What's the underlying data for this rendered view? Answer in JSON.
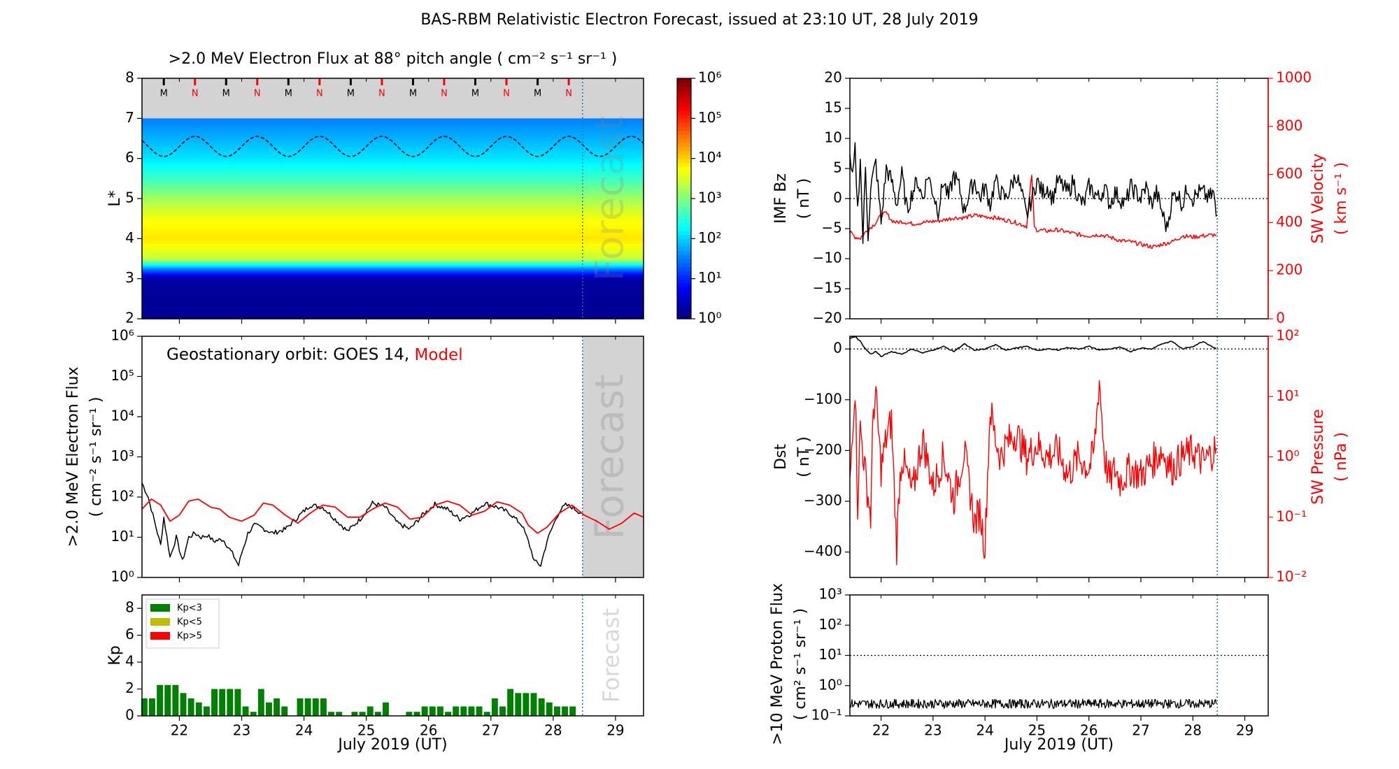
{
  "figure_title": "BAS-RBM Relativistic Electron Forecast, issued at 23:10 UT, 28 July 2019",
  "colors": {
    "model": "#ff0000",
    "data": "#000000",
    "kp_lt3": "#008000",
    "kp_lt5": "#bfbf00",
    "kp_gt5": "#ff0000",
    "forecast_shade": "#d3d3d3",
    "forecast_line": "#1f77b4"
  },
  "chart_data": [
    {
      "id": "flux_map",
      "type": "heatmap",
      "title": ">2.0 MeV Electron Flux at 88° pitch angle ( cm⁻² s⁻¹ sr⁻¹ )",
      "ylabel": "L*",
      "x_range": [
        21.4,
        29.45
      ],
      "ylim": [
        2,
        8
      ],
      "yticks": [
        "2",
        "3",
        "4",
        "5",
        "6",
        "7",
        "8"
      ],
      "colorbar_ticks": [
        "10⁰",
        "10¹",
        "10²",
        "10³",
        "10⁴",
        "10⁵",
        "10⁶"
      ],
      "colorbar_range": [
        0,
        6
      ],
      "forecast_start": 28.47,
      "forecast_label": "Forecast",
      "mn_markers": [
        {
          "label": "M",
          "x": 21.75
        },
        {
          "label": "N",
          "x": 22.25
        },
        {
          "label": "M",
          "x": 22.75
        },
        {
          "label": "N",
          "x": 23.25
        },
        {
          "label": "M",
          "x": 23.75
        },
        {
          "label": "N",
          "x": 24.25
        },
        {
          "label": "M",
          "x": 24.75
        },
        {
          "label": "N",
          "x": 25.25
        },
        {
          "label": "M",
          "x": 25.75
        },
        {
          "label": "N",
          "x": 26.25
        },
        {
          "label": "M",
          "x": 26.75
        },
        {
          "label": "N",
          "x": 27.25
        },
        {
          "label": "M",
          "x": 27.75
        },
        {
          "label": "N",
          "x": 28.25
        }
      ],
      "log_flux_profile": [
        {
          "L": 2.0,
          "log_flux": 0.1
        },
        {
          "L": 3.0,
          "log_flux": 0.2
        },
        {
          "L": 3.25,
          "log_flux": 1.5
        },
        {
          "L": 3.5,
          "log_flux": 3.4
        },
        {
          "L": 4.0,
          "log_flux": 3.9
        },
        {
          "L": 4.5,
          "log_flux": 3.7
        },
        {
          "L": 5.0,
          "log_flux": 3.2
        },
        {
          "L": 5.5,
          "log_flux": 2.6
        },
        {
          "L": 6.0,
          "log_flux": 2.1
        },
        {
          "L": 6.5,
          "log_flux": 1.8
        },
        {
          "L": 7.0,
          "log_flux": 1.5
        }
      ],
      "geo_orbit_L": {
        "mean": 6.3,
        "amplitude": 0.25,
        "period_days": 1
      }
    },
    {
      "id": "geo_flux",
      "type": "line",
      "ylabel": ">2.0 MeV Electron Flux ( cm⁻² s⁻¹ sr⁻¹ )",
      "annotation_prefix": "Geostationary orbit:   GOES 14,",
      "annotation_model": "Model",
      "yscale": "log",
      "ylim": [
        0,
        6
      ],
      "yticks": [
        "10⁰",
        "10¹",
        "10²",
        "10³",
        "10⁴",
        "10⁵",
        "10⁶"
      ],
      "x_range": [
        21.4,
        29.45
      ],
      "forecast_start": 28.47,
      "forecast_label": "Forecast",
      "series": [
        {
          "name": "GOES 14",
          "color": "#000000",
          "x": [
            21.4,
            21.5,
            21.6,
            21.7,
            21.75,
            21.85,
            21.95,
            22.05,
            22.15,
            22.25,
            22.35,
            22.45,
            22.55,
            22.7,
            22.85,
            22.95,
            23.0,
            23.1,
            23.2,
            23.3,
            23.5,
            23.7,
            23.9,
            24.1,
            24.3,
            24.5,
            24.7,
            24.9,
            25.1,
            25.3,
            25.5,
            25.7,
            25.9,
            26.1,
            26.3,
            26.5,
            26.7,
            26.9,
            27.1,
            27.3,
            27.5,
            27.6,
            27.7,
            27.8,
            27.9,
            28.0,
            28.1,
            28.2,
            28.3,
            28.45
          ],
          "y": [
            2.35,
            2.0,
            1.4,
            0.8,
            1.5,
            0.5,
            1.0,
            0.4,
            1.0,
            1.1,
            1.0,
            1.05,
            0.9,
            0.95,
            0.6,
            0.3,
            0.6,
            1.1,
            1.3,
            1.25,
            1.1,
            1.2,
            1.5,
            1.8,
            1.75,
            1.45,
            1.15,
            1.45,
            1.85,
            1.75,
            1.35,
            1.2,
            1.55,
            1.82,
            1.7,
            1.45,
            1.6,
            1.85,
            1.75,
            1.6,
            1.3,
            0.9,
            0.4,
            0.3,
            0.9,
            1.3,
            1.65,
            1.8,
            1.75,
            1.6
          ]
        },
        {
          "name": "Model",
          "color": "#ff0000",
          "x": [
            21.4,
            21.55,
            21.7,
            21.85,
            22.0,
            22.15,
            22.3,
            22.5,
            22.65,
            22.8,
            23.0,
            23.2,
            23.35,
            23.5,
            23.7,
            23.9,
            24.1,
            24.3,
            24.5,
            24.7,
            24.9,
            25.1,
            25.3,
            25.5,
            25.7,
            25.9,
            26.1,
            26.3,
            26.5,
            26.7,
            26.9,
            27.1,
            27.3,
            27.5,
            27.6,
            27.75,
            27.9,
            28.1,
            28.3,
            28.5,
            28.7,
            28.9,
            29.1,
            29.3,
            29.45
          ],
          "y": [
            1.7,
            1.95,
            1.8,
            1.4,
            1.55,
            1.9,
            1.95,
            1.75,
            1.7,
            1.5,
            1.4,
            1.55,
            1.85,
            1.8,
            1.55,
            1.35,
            1.6,
            1.8,
            1.75,
            1.5,
            1.5,
            1.7,
            1.85,
            1.75,
            1.45,
            1.5,
            1.8,
            1.9,
            1.8,
            1.55,
            1.65,
            1.88,
            1.8,
            1.6,
            1.3,
            1.1,
            1.25,
            1.6,
            1.8,
            1.55,
            1.4,
            1.2,
            1.35,
            1.6,
            1.5
          ]
        }
      ]
    },
    {
      "id": "kp",
      "type": "bar",
      "ylabel": "Kp",
      "xlabel": "July 2019 (UT)",
      "ylim": [
        0,
        9
      ],
      "yticks": [
        "0",
        "2",
        "4",
        "6",
        "8"
      ],
      "x_range": [
        21.4,
        29.45
      ],
      "xticks": [
        "22",
        "23",
        "24",
        "25",
        "26",
        "27",
        "28",
        "29"
      ],
      "bar_width_days": 0.1,
      "forecast_start": 28.47,
      "forecast_label": "Forecast",
      "legend": [
        "Kp<3",
        "Kp<5",
        "Kp>5"
      ],
      "x": [
        21.4375,
        21.5625,
        21.6875,
        21.8125,
        21.9375,
        22.0625,
        22.1875,
        22.3125,
        22.4375,
        22.5625,
        22.6875,
        22.8125,
        22.9375,
        23.0625,
        23.1875,
        23.3125,
        23.4375,
        23.5625,
        23.6875,
        23.8125,
        23.9375,
        24.0625,
        24.1875,
        24.3125,
        24.4375,
        24.5625,
        24.6875,
        24.8125,
        24.9375,
        25.0625,
        25.1875,
        25.3125,
        25.4375,
        25.5625,
        25.6875,
        25.8125,
        25.9375,
        26.0625,
        26.1875,
        26.3125,
        26.4375,
        26.5625,
        26.6875,
        26.8125,
        26.9375,
        27.0625,
        27.1875,
        27.3125,
        27.4375,
        27.5625,
        27.6875,
        27.8125,
        27.9375,
        28.0625,
        28.1875,
        28.3125
      ],
      "values": [
        1.3,
        1.3,
        2.3,
        2.3,
        2.3,
        1.7,
        1.3,
        1.0,
        0.7,
        2.0,
        2.0,
        2.0,
        2.0,
        0.7,
        0.3,
        2.0,
        1.0,
        1.3,
        0.7,
        0.0,
        1.3,
        1.3,
        1.3,
        1.3,
        0.3,
        0.3,
        0.0,
        0.3,
        0.3,
        0.7,
        0.3,
        1.0,
        0.0,
        0.0,
        0.3,
        0.3,
        0.7,
        0.7,
        0.7,
        0.3,
        0.7,
        0.7,
        0.7,
        0.7,
        0.3,
        1.3,
        0.7,
        2.0,
        1.7,
        1.7,
        1.7,
        1.3,
        1.0,
        0.7,
        0.7,
        0.7
      ]
    },
    {
      "id": "imf_sw",
      "type": "line",
      "ylabel_left": "IMF Bz ( nT )",
      "ylabel_right": "SW Velocity ( km s⁻¹ )",
      "ylim_left": [
        -20,
        20
      ],
      "ylim_right": [
        0,
        1000
      ],
      "yticks_left": [
        "−20",
        "−15",
        "−10",
        "−5",
        "0",
        "5",
        "10",
        "15",
        "20"
      ],
      "yticks_right": [
        "0",
        "200",
        "400",
        "600",
        "800",
        "1000"
      ],
      "x_range": [
        21.4,
        29.45
      ],
      "forecast_start": 28.47,
      "reference_line_left": 0,
      "series": [
        {
          "name": "IMF Bz",
          "axis": "left",
          "color": "#000000",
          "x": [
            21.4,
            21.45,
            21.5,
            21.55,
            21.6,
            21.65,
            21.7,
            21.75,
            21.8,
            21.9,
            22.0,
            22.1,
            22.2,
            22.3,
            22.4,
            22.5,
            22.6,
            22.7,
            22.8,
            22.9,
            23.0,
            23.1,
            23.2,
            23.3,
            23.4,
            23.5,
            23.6,
            23.7,
            23.8,
            23.9,
            24.0,
            24.1,
            24.2,
            24.3,
            24.4,
            24.5,
            24.6,
            24.7,
            24.8,
            24.9,
            25.0,
            25.1,
            25.2,
            25.3,
            25.4,
            25.5,
            25.6,
            25.7,
            25.8,
            25.9,
            26.0,
            26.1,
            26.2,
            26.3,
            26.4,
            26.5,
            26.6,
            26.7,
            26.8,
            26.9,
            27.0,
            27.1,
            27.2,
            27.3,
            27.4,
            27.5,
            27.6,
            27.7,
            27.8,
            27.9,
            28.0,
            28.1,
            28.2,
            28.3,
            28.4,
            28.45
          ],
          "y": [
            6,
            3,
            8,
            -2,
            7,
            -7,
            5,
            -6,
            2,
            6,
            -4,
            5,
            3,
            -1,
            4,
            -2,
            1,
            3,
            0,
            4,
            1,
            -2,
            3,
            0,
            4,
            2,
            -2,
            1,
            3,
            0,
            2,
            -1,
            3,
            1,
            0,
            2,
            4,
            1,
            -3,
            0,
            3,
            1,
            2,
            0,
            3,
            2,
            1,
            3,
            0,
            -1,
            2,
            1,
            0,
            2,
            -1,
            1,
            0,
            -1,
            2,
            1,
            0,
            2,
            -1,
            1,
            -2,
            -5,
            0,
            1,
            -1,
            2,
            0,
            1,
            1,
            0,
            1,
            -3
          ]
        },
        {
          "name": "SW Velocity",
          "axis": "right",
          "color": "#ff0000",
          "x": [
            21.4,
            21.5,
            21.6,
            21.7,
            21.8,
            21.9,
            22.0,
            22.1,
            22.2,
            22.3,
            22.4,
            22.5,
            22.6,
            22.8,
            23.0,
            23.2,
            23.4,
            23.6,
            23.8,
            24.0,
            24.2,
            24.4,
            24.6,
            24.8,
            24.9,
            24.95,
            25.0,
            25.2,
            25.4,
            25.6,
            25.8,
            26.0,
            26.2,
            26.4,
            26.6,
            26.8,
            27.0,
            27.2,
            27.3,
            27.4,
            27.6,
            27.8,
            28.0,
            28.2,
            28.45
          ],
          "y": [
            360,
            340,
            335,
            360,
            380,
            400,
            430,
            440,
            410,
            400,
            405,
            400,
            395,
            400,
            405,
            410,
            420,
            420,
            430,
            425,
            420,
            410,
            400,
            385,
            600,
            380,
            370,
            365,
            370,
            360,
            350,
            345,
            350,
            340,
            325,
            320,
            310,
            300,
            300,
            310,
            320,
            345,
            340,
            345,
            350
          ]
        }
      ]
    },
    {
      "id": "dst_pressure",
      "type": "line",
      "ylabel_left": "Dst ( nT )",
      "ylabel_right": "SW Pressure ( nPa )",
      "ylim_left": [
        -450,
        25
      ],
      "ylim_right_log": [
        -2,
        2
      ],
      "yticks_left": [
        "−400",
        "−300",
        "−200",
        "−100",
        "0"
      ],
      "yticks_right": [
        "10⁻²",
        "10⁻¹",
        "10⁰",
        "10¹",
        "10²"
      ],
      "x_range": [
        21.4,
        29.45
      ],
      "forecast_start": 28.47,
      "reference_line_left": 0,
      "series": [
        {
          "name": "Dst",
          "axis": "left",
          "color": "#000000",
          "x": [
            21.4,
            21.5,
            21.6,
            21.7,
            21.8,
            21.9,
            22.0,
            22.2,
            22.4,
            22.6,
            22.8,
            23.0,
            23.2,
            23.4,
            23.6,
            23.8,
            24.0,
            24.2,
            24.4,
            24.6,
            24.8,
            25.0,
            25.2,
            25.4,
            25.6,
            25.8,
            26.0,
            26.2,
            26.4,
            26.6,
            26.8,
            27.0,
            27.2,
            27.4,
            27.6,
            27.8,
            28.0,
            28.2,
            28.45
          ],
          "y": [
            20,
            25,
            15,
            0,
            -10,
            -5,
            -15,
            -5,
            -10,
            0,
            -8,
            -2,
            5,
            -5,
            10,
            -3,
            0,
            8,
            -2,
            2,
            5,
            -3,
            0,
            -2,
            3,
            0,
            5,
            -2,
            0,
            3,
            -5,
            2,
            0,
            10,
            15,
            0,
            5,
            15,
            0
          ]
        },
        {
          "name": "SW Pressure",
          "axis": "right",
          "color": "#ff0000",
          "x": [
            21.4,
            21.45,
            21.5,
            21.55,
            21.6,
            21.7,
            21.8,
            21.85,
            21.9,
            22.0,
            22.1,
            22.2,
            22.3,
            22.35,
            22.4,
            22.6,
            22.8,
            23.0,
            23.2,
            23.4,
            23.6,
            23.8,
            23.9,
            24.0,
            24.05,
            24.1,
            24.2,
            24.3,
            24.4,
            24.6,
            24.8,
            25.0,
            25.2,
            25.4,
            25.6,
            25.8,
            26.0,
            26.1,
            26.2,
            26.3,
            26.4,
            26.5,
            26.6,
            26.8,
            27.0,
            27.2,
            27.4,
            27.6,
            27.8,
            28.0,
            28.2,
            28.45
          ],
          "y": [
            -0.5,
            0.5,
            1.2,
            -0.8,
            0.5,
            -0.3,
            -1.0,
            0.8,
            1.0,
            -0.2,
            0.3,
            0.6,
            -1.5,
            -0.5,
            0.0,
            -0.6,
            0.3,
            -0.5,
            0.0,
            -0.7,
            0.1,
            -1.1,
            -0.9,
            -1.5,
            -0.3,
            0.8,
            0.3,
            0.0,
            0.2,
            0.4,
            0.0,
            0.2,
            0.0,
            0.1,
            -0.3,
            0.0,
            -0.2,
            0.1,
            1.3,
            0.0,
            -0.4,
            -0.2,
            -0.4,
            -0.2,
            -0.3,
            -0.1,
            0.1,
            -0.2,
            0.0,
            0.1,
            -0.1,
            0.15
          ]
        }
      ]
    },
    {
      "id": "proton",
      "type": "line",
      "ylabel": ">10 MeV Proton Flux ( cm² s⁻¹ sr⁻¹ )",
      "xlabel": "July 2019 (UT)",
      "yscale": "log",
      "ylim": [
        -1,
        3
      ],
      "yticks": [
        "10⁻¹",
        "10⁰",
        "10¹",
        "10²",
        "10³"
      ],
      "x_range": [
        21.4,
        29.45
      ],
      "xticks": [
        "22",
        "23",
        "24",
        "25",
        "26",
        "27",
        "28",
        "29"
      ],
      "forecast_start": 28.47,
      "threshold_log": 1,
      "series": [
        {
          "name": "Proton flux",
          "color": "#000000",
          "x": [
            21.4,
            28.45
          ],
          "y": [
            -0.6,
            -0.6
          ]
        }
      ]
    }
  ]
}
